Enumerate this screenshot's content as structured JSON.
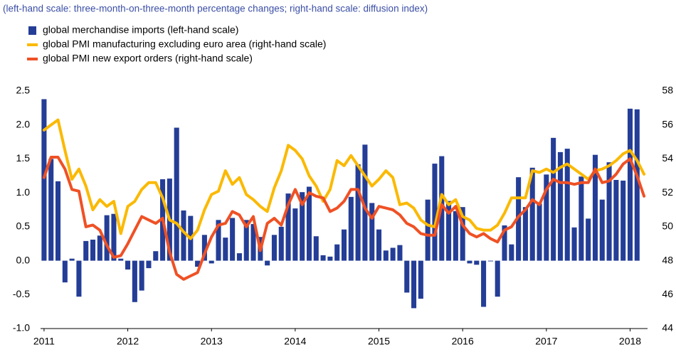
{
  "chart_data": {
    "type": "bar",
    "subtitle": "(left-hand scale: three-month-on-three-month percentage changes; right-hand scale: diffusion index)",
    "categories": [
      "2011",
      null,
      null,
      null,
      null,
      null,
      null,
      null,
      null,
      null,
      null,
      null,
      "2012",
      null,
      null,
      null,
      null,
      null,
      null,
      null,
      null,
      null,
      null,
      null,
      "2013",
      null,
      null,
      null,
      null,
      null,
      null,
      null,
      null,
      null,
      null,
      null,
      "2014",
      null,
      null,
      null,
      null,
      null,
      null,
      null,
      null,
      null,
      null,
      null,
      "2015",
      null,
      null,
      null,
      null,
      null,
      null,
      null,
      null,
      null,
      null,
      null,
      "2016",
      null,
      null,
      null,
      null,
      null,
      null,
      null,
      null,
      null,
      null,
      null,
      "2017",
      null,
      null,
      null,
      null,
      null,
      null,
      null,
      null,
      null,
      null,
      null,
      "2018",
      null,
      null
    ],
    "series": [
      {
        "name": "global merchandise imports (left-hand scale)",
        "type": "bar",
        "axis": "y",
        "color": "#243d96",
        "values": [
          2.38,
          1.5,
          1.17,
          -0.32,
          0.03,
          -0.53,
          0.29,
          0.31,
          0.37,
          0.67,
          0.69,
          0.03,
          -0.13,
          -0.61,
          -0.44,
          -0.11,
          0.14,
          1.2,
          1.21,
          1.96,
          0.74,
          0.66,
          -0.09,
          0.38,
          -0.04,
          0.6,
          0.34,
          0.63,
          0.11,
          0.6,
          0.54,
          0.35,
          -0.07,
          0.38,
          0.5,
          0.99,
          0.77,
          1.01,
          1.09,
          0.36,
          0.08,
          0.06,
          0.24,
          0.46,
          0.94,
          1.42,
          1.71,
          0.85,
          0.46,
          0.15,
          0.19,
          0.23,
          -0.47,
          -0.7,
          -0.56,
          0.9,
          1.43,
          1.54,
          0.88,
          0.73,
          0.79,
          -0.04,
          -0.06,
          -0.68,
          -0.01,
          -0.53,
          0.52,
          0.24,
          1.23,
          0.79,
          1.37,
          0.84,
          1.27,
          1.81,
          1.6,
          1.65,
          0.49,
          1.24,
          0.62,
          1.56,
          0.9,
          1.45,
          1.19,
          1.18,
          2.24,
          2.23,
          null
        ]
      },
      {
        "name": "global PMI manufacturing excluding euro area (right-hand scale)",
        "type": "line",
        "axis": "y2",
        "color": "#fbb900",
        "values": [
          55.7,
          56.0,
          56.3,
          54.5,
          52.8,
          53.4,
          52.4,
          51.0,
          51.6,
          51.2,
          51.5,
          49.6,
          51.2,
          51.5,
          52.2,
          52.6,
          52.6,
          51.7,
          50.4,
          50.2,
          49.7,
          49.3,
          49.8,
          51.0,
          51.9,
          52.1,
          53.3,
          52.5,
          52.9,
          51.9,
          51.6,
          51.2,
          50.9,
          52.3,
          53.3,
          54.8,
          54.5,
          54.0,
          53.0,
          52.4,
          51.5,
          52.2,
          53.9,
          53.6,
          54.2,
          53.6,
          53.0,
          52.4,
          52.8,
          53.3,
          52.9,
          51.3,
          51.4,
          51.1,
          50.4,
          50.1,
          50.0,
          51.9,
          51.3,
          51.6,
          50.6,
          50.4,
          49.9,
          49.8,
          49.8,
          50.1,
          50.8,
          51.7,
          51.7,
          51.7,
          53.3,
          53.2,
          53.4,
          53.2,
          53.5,
          53.7,
          53.4,
          53.1,
          52.8,
          53.3,
          53.4,
          53.6,
          53.9,
          54.3,
          54.5,
          53.9,
          53.1
        ]
      },
      {
        "name": "global PMI new export orders (right-hand scale)",
        "type": "line",
        "axis": "y2",
        "color": "#ef5125",
        "values": [
          52.9,
          54.1,
          54.1,
          53.4,
          52.2,
          52.1,
          50.0,
          50.1,
          49.8,
          48.9,
          48.2,
          48.3,
          49.0,
          49.8,
          50.6,
          50.4,
          50.2,
          50.5,
          48.5,
          47.2,
          46.9,
          47.1,
          47.3,
          48.4,
          49.4,
          50.1,
          50.2,
          50.9,
          50.7,
          50.0,
          50.6,
          48.6,
          50.2,
          50.5,
          50.1,
          51.3,
          52.2,
          51.3,
          52.0,
          51.8,
          51.7,
          50.9,
          51.1,
          51.5,
          52.2,
          52.2,
          51.1,
          50.5,
          51.2,
          51.1,
          51.0,
          50.7,
          50.2,
          50.0,
          49.6,
          49.5,
          49.5,
          51.3,
          50.8,
          51.2,
          50.1,
          49.6,
          49.4,
          49.6,
          49.3,
          49.1,
          49.8,
          50.0,
          50.6,
          51.0,
          51.6,
          51.3,
          52.2,
          52.8,
          52.6,
          52.6,
          52.5,
          52.6,
          52.6,
          53.4,
          52.6,
          52.7,
          53.1,
          53.7,
          54.0,
          53.0,
          51.8
        ]
      }
    ],
    "ylim": [
      -1,
      2.5
    ],
    "yticks": [
      {
        "value": -1,
        "label": "-1.0"
      },
      -0.5,
      {
        "value": 0,
        "label": "0.0"
      },
      0.5,
      {
        "value": 1,
        "label": "1.0"
      },
      1.5,
      {
        "value": 2,
        "label": "2.0"
      },
      2.5
    ],
    "y2lim": [
      44,
      58
    ],
    "y2ticks": [
      44,
      46,
      48,
      50,
      52,
      54,
      56,
      58
    ],
    "grid": false
  }
}
